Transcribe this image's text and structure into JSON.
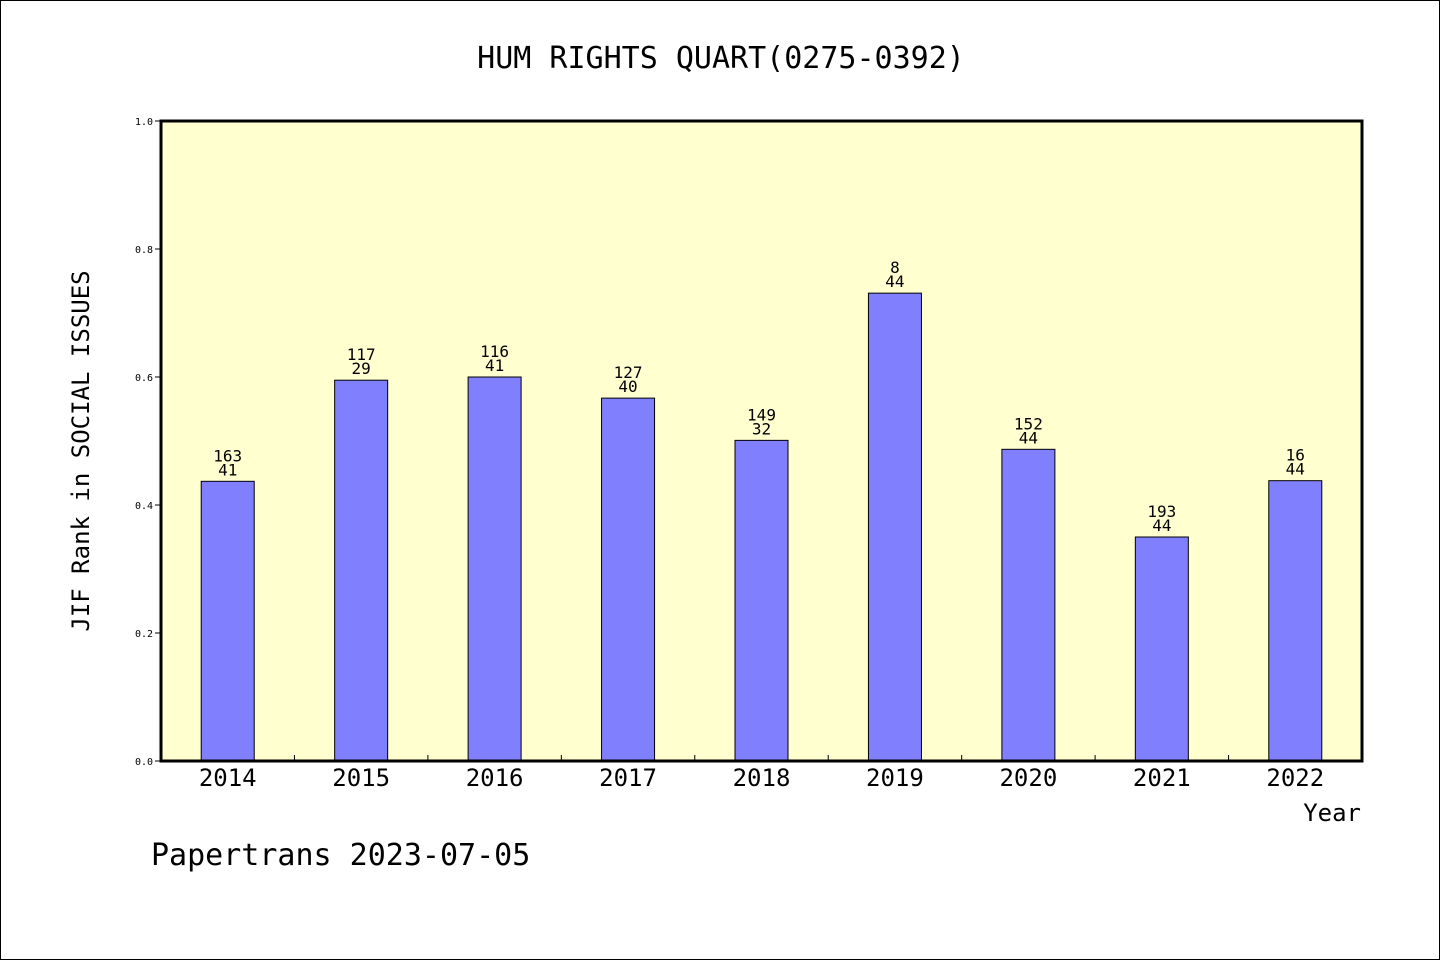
{
  "chart_data": {
    "type": "bar",
    "title": "HUM RIGHTS QUART(0275-0392)",
    "xlabel": "Year",
    "ylabel": "JIF Rank in SOCIAL ISSUES",
    "ylim": [
      0.0,
      1.0
    ],
    "yticks": [
      "0.0",
      "0.2",
      "0.4",
      "0.6",
      "0.8",
      "1.0"
    ],
    "categories": [
      "2014",
      "2015",
      "2016",
      "2017",
      "2018",
      "2019",
      "2020",
      "2021",
      "2022"
    ],
    "values": [
      0.437,
      0.595,
      0.6,
      0.567,
      0.501,
      0.731,
      0.487,
      0.35,
      0.438
    ],
    "rank_labels": [
      "163",
      "117",
      "116",
      "127",
      "149",
      "8",
      "152",
      "193",
      "16"
    ],
    "count_labels": [
      "41",
      "29",
      "41",
      "40",
      "32",
      "44",
      "44",
      "44",
      "44"
    ],
    "bar_color": "#8080ff",
    "plot_background": "#ffffd0",
    "grid": false
  },
  "footer": "Papertrans 2023-07-05"
}
